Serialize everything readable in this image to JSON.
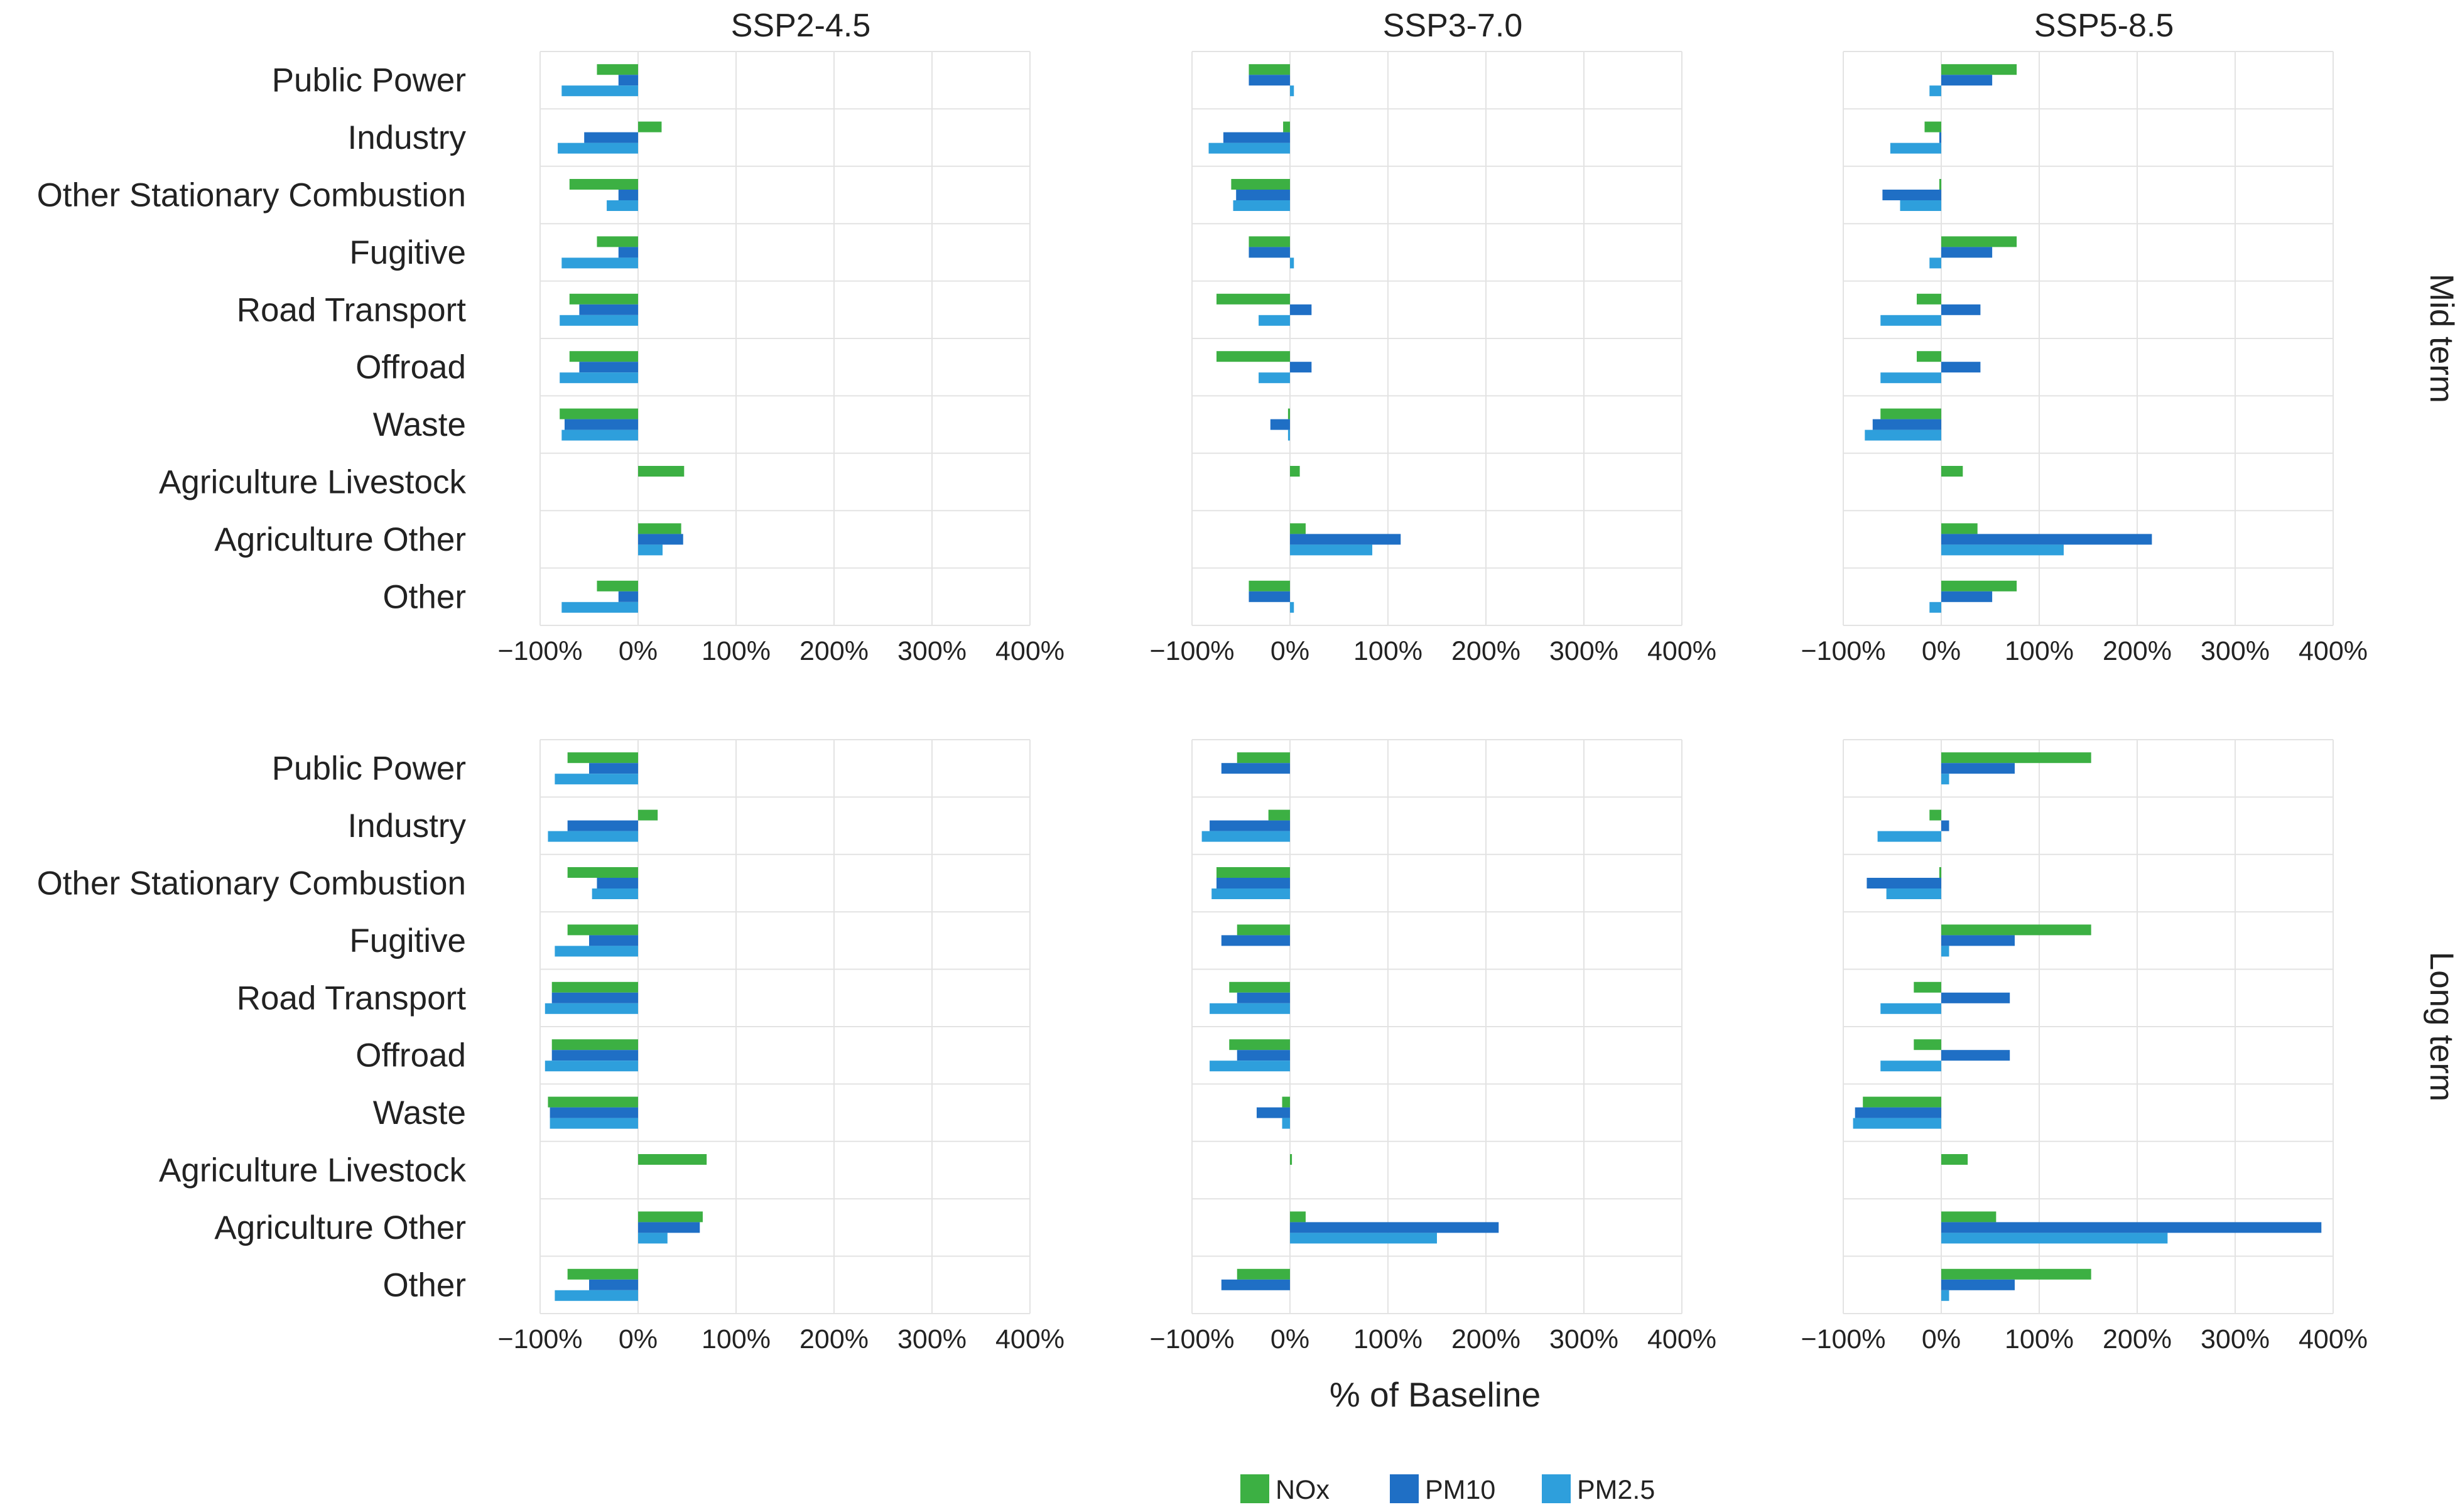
{
  "colors": {
    "NOx": "#3cb043",
    "PM10": "#1f6fc5",
    "PM2.5": "#2e9fdc",
    "grid": "#e3e3e3"
  },
  "chart_data": {
    "type": "bar",
    "orientation": "horizontal",
    "x_title": "% of Baseline",
    "xlim": [
      -100,
      400
    ],
    "ticks": [
      -100,
      0,
      100,
      200,
      300,
      400
    ],
    "tick_labels": [
      "−100%",
      "0%",
      "100%",
      "200%",
      "300%",
      "400%"
    ],
    "columns": [
      "SSP2-4.5",
      "SSP3-7.0",
      "SSP5-8.5"
    ],
    "rows": [
      "Mid term",
      "Long term"
    ],
    "categories": [
      "Public Power",
      "Industry",
      "Other Stationary Combustion",
      "Fugitive",
      "Road Transport",
      "Offroad",
      "Waste",
      "Agriculture Livestock",
      "Agriculture Other",
      "Other"
    ],
    "legend": [
      "NOx",
      "PM10",
      "PM2.5"
    ],
    "panels": [
      {
        "row": "Mid term",
        "column": "SSP2-4.5",
        "series": [
          {
            "name": "NOx",
            "values": [
              -42,
              24,
              -70,
              -42,
              -70,
              -70,
              -80,
              47,
              44,
              -42
            ]
          },
          {
            "name": "PM10",
            "values": [
              -20,
              -55,
              -20,
              -20,
              -60,
              -60,
              -75,
              0,
              46,
              -20
            ]
          },
          {
            "name": "PM2.5",
            "values": [
              -78,
              -82,
              -32,
              -78,
              -80,
              -80,
              -78,
              0,
              25,
              -78
            ]
          }
        ]
      },
      {
        "row": "Mid term",
        "column": "SSP3-7.0",
        "series": [
          {
            "name": "NOx",
            "values": [
              -42,
              -7,
              -60,
              -42,
              -75,
              -75,
              -2,
              10,
              16,
              -42
            ]
          },
          {
            "name": "PM10",
            "values": [
              -42,
              -68,
              -55,
              -42,
              22,
              22,
              -20,
              0,
              113,
              -42
            ]
          },
          {
            "name": "PM2.5",
            "values": [
              4,
              -83,
              -58,
              4,
              -32,
              -32,
              -2,
              0,
              84,
              4
            ]
          }
        ]
      },
      {
        "row": "Mid term",
        "column": "SSP5-8.5",
        "series": [
          {
            "name": "NOx",
            "values": [
              77,
              -17,
              -2,
              77,
              -25,
              -25,
              -62,
              22,
              37,
              77
            ]
          },
          {
            "name": "PM10",
            "values": [
              52,
              -2,
              -60,
              52,
              40,
              40,
              -70,
              0,
              215,
              52
            ]
          },
          {
            "name": "PM2.5",
            "values": [
              -12,
              -52,
              -42,
              -12,
              -62,
              -62,
              -78,
              0,
              125,
              -12
            ]
          }
        ]
      },
      {
        "row": "Long term",
        "column": "SSP2-4.5",
        "series": [
          {
            "name": "NOx",
            "values": [
              -72,
              20,
              -72,
              -72,
              -88,
              -88,
              -92,
              70,
              66,
              -72
            ]
          },
          {
            "name": "PM10",
            "values": [
              -50,
              -72,
              -42,
              -50,
              -88,
              -88,
              -90,
              0,
              63,
              -50
            ]
          },
          {
            "name": "PM2.5",
            "values": [
              -85,
              -92,
              -47,
              -85,
              -95,
              -95,
              -90,
              0,
              30,
              -85
            ]
          }
        ]
      },
      {
        "row": "Long term",
        "column": "SSP3-7.0",
        "series": [
          {
            "name": "NOx",
            "values": [
              -54,
              -22,
              -75,
              -54,
              -62,
              -62,
              -8,
              2,
              16,
              -54
            ]
          },
          {
            "name": "PM10",
            "values": [
              -70,
              -82,
              -75,
              -70,
              -54,
              -54,
              -34,
              0,
              213,
              -70
            ]
          },
          {
            "name": "PM2.5",
            "values": [
              0,
              -90,
              -80,
              0,
              -82,
              -82,
              -8,
              0,
              150,
              0
            ]
          }
        ]
      },
      {
        "row": "Long term",
        "column": "SSP5-8.5",
        "series": [
          {
            "name": "NOx",
            "values": [
              153,
              -12,
              -2,
              153,
              -28,
              -28,
              -80,
              27,
              56,
              153
            ]
          },
          {
            "name": "PM10",
            "values": [
              75,
              8,
              -76,
              75,
              70,
              70,
              -88,
              0,
              388,
              75
            ]
          },
          {
            "name": "PM2.5",
            "values": [
              8,
              -65,
              -56,
              8,
              -62,
              -62,
              -90,
              0,
              231,
              8
            ]
          }
        ]
      }
    ]
  }
}
